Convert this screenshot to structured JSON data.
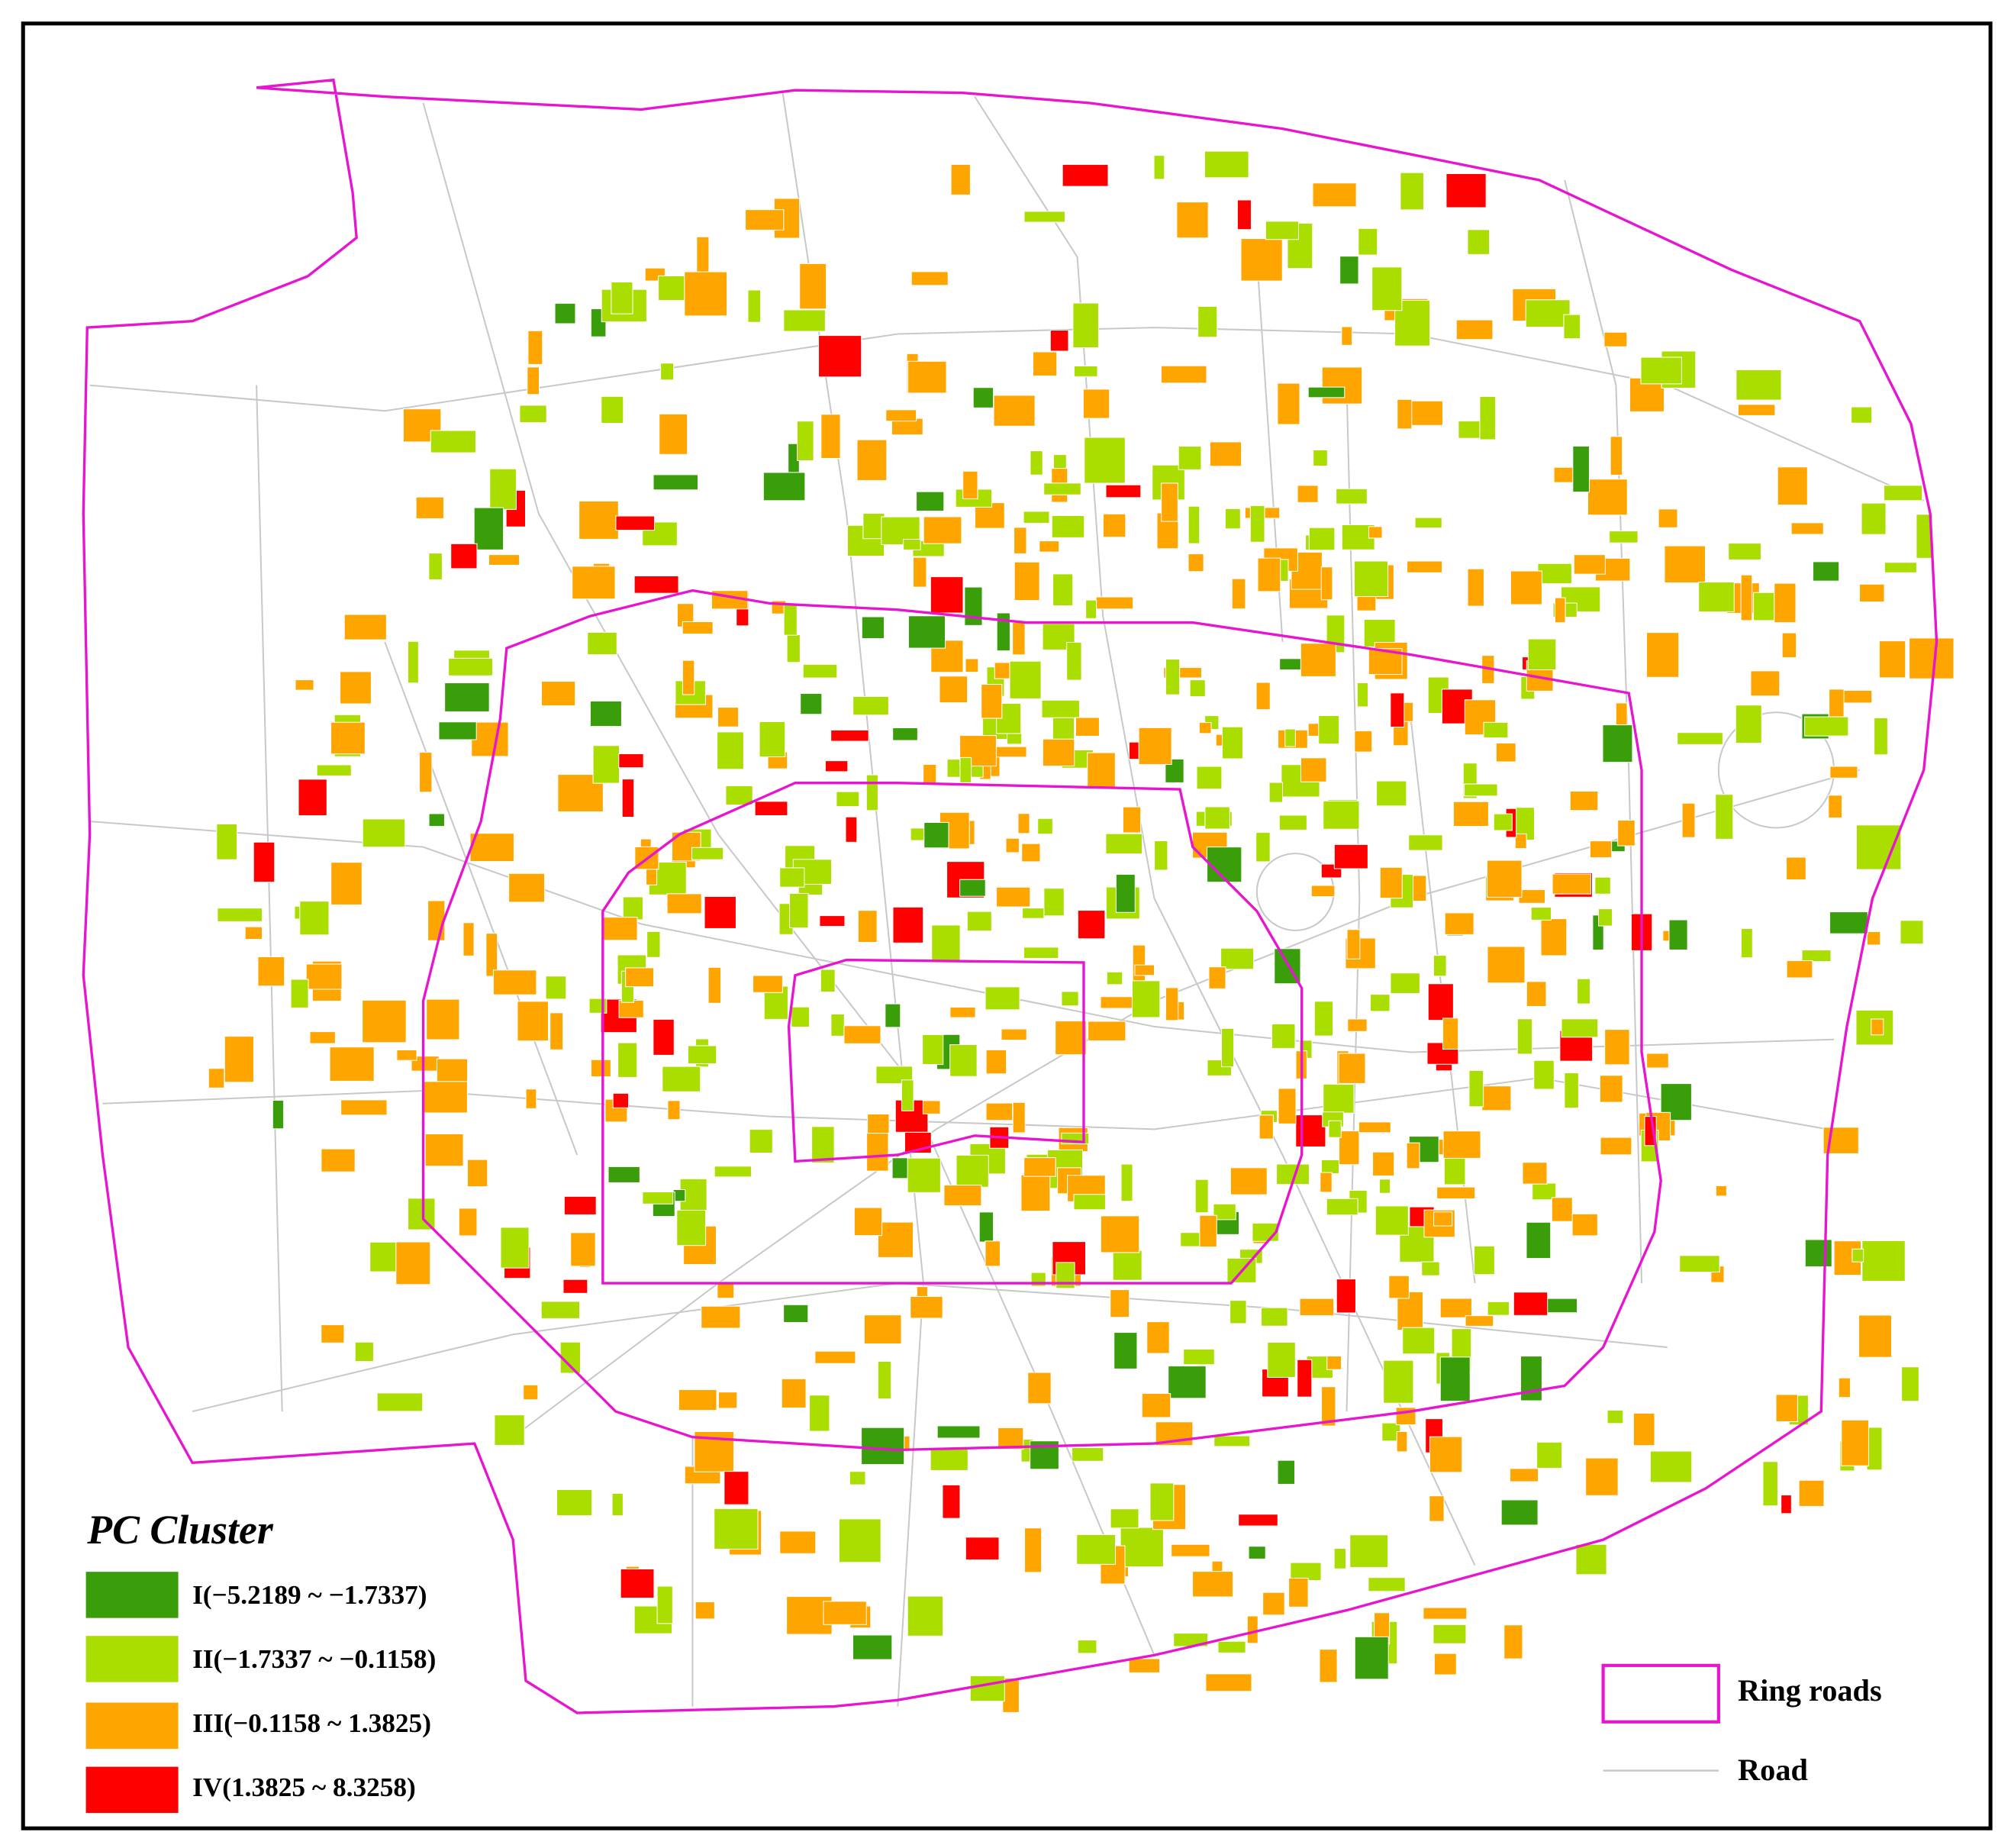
{
  "legend": {
    "title": "PC Cluster",
    "items": [
      "I(−5.2189 ~ −1.7337)",
      "II(−1.7337 ~ −0.1158)",
      "III(−0.1158 ~ 1.3825)",
      "IV(1.3825 ~ 8.3258)"
    ]
  },
  "road_legend": {
    "ring_roads": "Ring roads",
    "road": "Road"
  }
}
